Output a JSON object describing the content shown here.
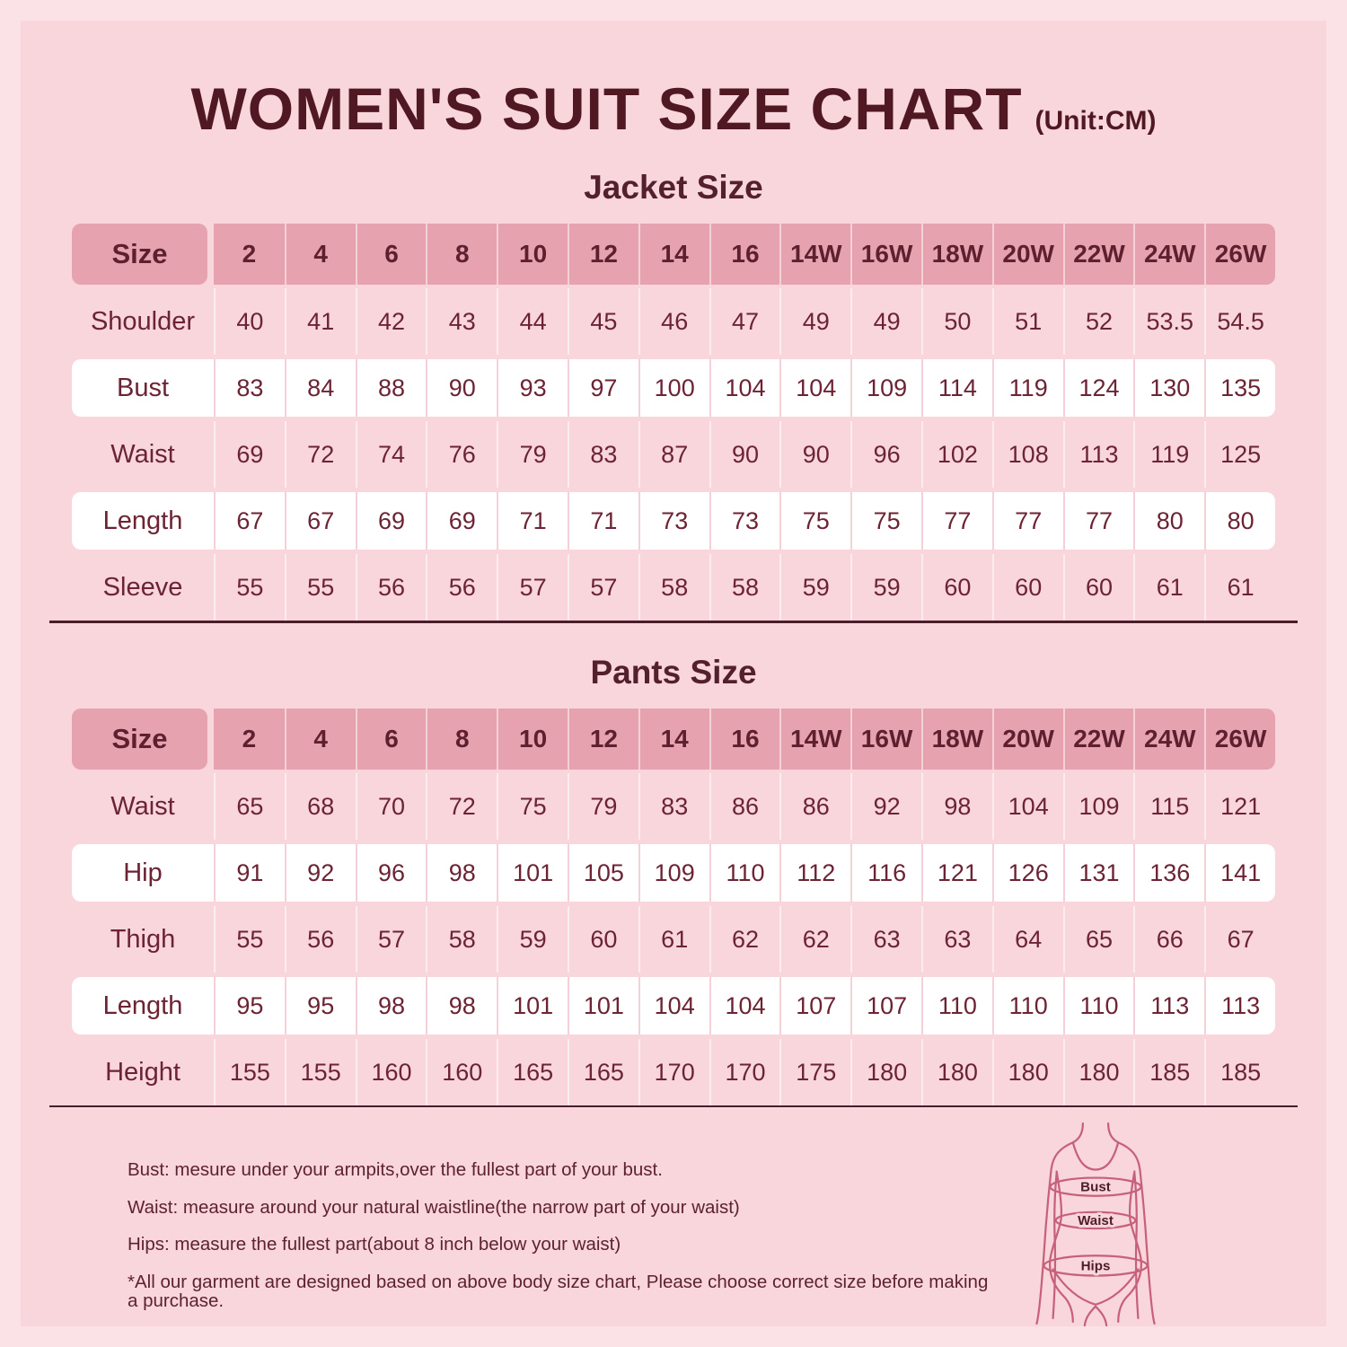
{
  "page": {
    "title": "WOMEN'S SUIT SIZE CHART",
    "unit": "(Unit:CM)"
  },
  "colors": {
    "background": "#fbe2e7",
    "panel": "#f8d6db",
    "header_row": "#e6a2ae",
    "white_row": "#ffffff",
    "text_maroon": "#6c2334",
    "title_maroon": "#4f1823",
    "divider": "#4a1b29",
    "figure_stroke": "#c7607a"
  },
  "chart_data": [
    {
      "type": "table",
      "title": "Jacket Size",
      "columns": [
        "Size",
        "2",
        "4",
        "6",
        "8",
        "10",
        "12",
        "14",
        "16",
        "14W",
        "16W",
        "18W",
        "20W",
        "22W",
        "24W",
        "26W"
      ],
      "rows": [
        {
          "label": "Shoulder",
          "values": [
            "40",
            "41",
            "42",
            "43",
            "44",
            "45",
            "46",
            "47",
            "49",
            "49",
            "50",
            "51",
            "52",
            "53.5",
            "54.5"
          ]
        },
        {
          "label": "Bust",
          "values": [
            "83",
            "84",
            "88",
            "90",
            "93",
            "97",
            "100",
            "104",
            "104",
            "109",
            "114",
            "119",
            "124",
            "130",
            "135"
          ]
        },
        {
          "label": "Waist",
          "values": [
            "69",
            "72",
            "74",
            "76",
            "79",
            "83",
            "87",
            "90",
            "90",
            "96",
            "102",
            "108",
            "113",
            "119",
            "125"
          ]
        },
        {
          "label": "Length",
          "values": [
            "67",
            "67",
            "69",
            "69",
            "71",
            "71",
            "73",
            "73",
            "75",
            "75",
            "77",
            "77",
            "77",
            "80",
            "80"
          ]
        },
        {
          "label": "Sleeve",
          "values": [
            "55",
            "55",
            "56",
            "56",
            "57",
            "57",
            "58",
            "58",
            "59",
            "59",
            "60",
            "60",
            "60",
            "61",
            "61"
          ]
        }
      ]
    },
    {
      "type": "table",
      "title": "Pants Size",
      "columns": [
        "Size",
        "2",
        "4",
        "6",
        "8",
        "10",
        "12",
        "14",
        "16",
        "14W",
        "16W",
        "18W",
        "20W",
        "22W",
        "24W",
        "26W"
      ],
      "rows": [
        {
          "label": "Waist",
          "values": [
            "65",
            "68",
            "70",
            "72",
            "75",
            "79",
            "83",
            "86",
            "86",
            "92",
            "98",
            "104",
            "109",
            "115",
            "121"
          ]
        },
        {
          "label": "Hip",
          "values": [
            "91",
            "92",
            "96",
            "98",
            "101",
            "105",
            "109",
            "110",
            "112",
            "116",
            "121",
            "126",
            "131",
            "136",
            "141"
          ]
        },
        {
          "label": "Thigh",
          "values": [
            "55",
            "56",
            "57",
            "58",
            "59",
            "60",
            "61",
            "62",
            "62",
            "63",
            "63",
            "64",
            "65",
            "66",
            "67"
          ]
        },
        {
          "label": "Length",
          "values": [
            "95",
            "95",
            "98",
            "98",
            "101",
            "101",
            "104",
            "104",
            "107",
            "107",
            "110",
            "110",
            "110",
            "113",
            "113"
          ]
        },
        {
          "label": "Height",
          "values": [
            "155",
            "155",
            "160",
            "160",
            "165",
            "165",
            "170",
            "170",
            "175",
            "180",
            "180",
            "180",
            "180",
            "185",
            "185"
          ]
        }
      ]
    }
  ],
  "notes": [
    "Bust: mesure under your armpits,over the fullest part of your bust.",
    "Waist: measure around your natural waistline(the narrow part of your waist)",
    "Hips: measure the fullest part(about 8 inch below your waist)",
    "*All our garment are designed based on above body size chart, Please choose correct size before making a purchase."
  ],
  "figure": {
    "labels": [
      "Bust",
      "Waist",
      "Hips"
    ]
  }
}
